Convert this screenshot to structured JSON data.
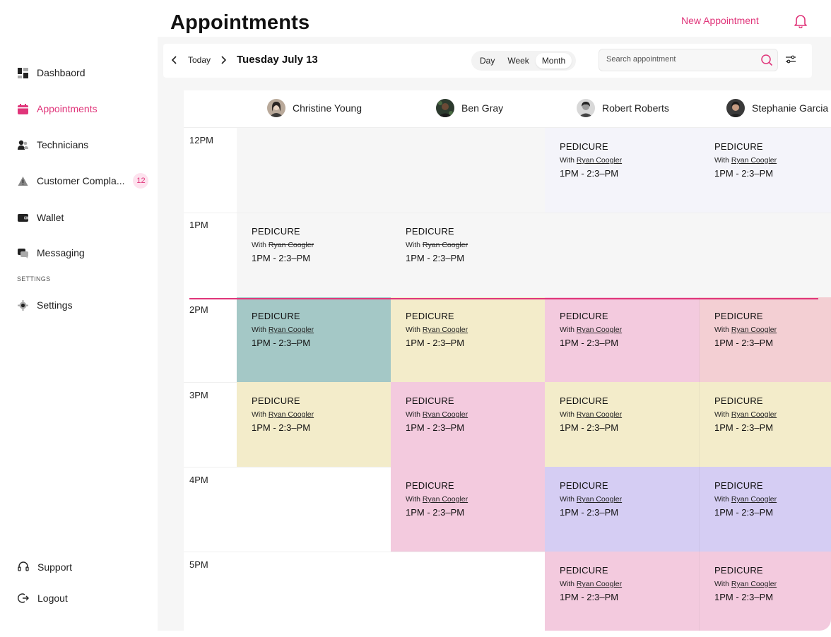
{
  "header": {
    "title": "Appointments",
    "new_appointment": "New Appointment"
  },
  "sidebar": {
    "items": [
      {
        "label": "Dashbaord",
        "icon": "dashboard-icon"
      },
      {
        "label": "Appointments",
        "icon": "calendar-icon",
        "active": true
      },
      {
        "label": "Technicians",
        "icon": "users-icon"
      },
      {
        "label": "Customer Compla...",
        "icon": "warning-icon",
        "badge": "12"
      },
      {
        "label": "Wallet",
        "icon": "wallet-icon"
      },
      {
        "label": "Messaging",
        "icon": "chat-icon"
      }
    ],
    "settings_section": "SETTINGS",
    "settings": {
      "label": "Settings",
      "icon": "gear-icon"
    },
    "support": {
      "label": "Support",
      "icon": "headset-icon"
    },
    "logout": {
      "label": "Logout",
      "icon": "logout-icon"
    }
  },
  "toolbar": {
    "today": "Today",
    "date": "Tuesday July 13",
    "views": [
      "Day",
      "Week",
      "Month"
    ],
    "active_view": "Month",
    "search_placeholder": "Search appointment"
  },
  "technicians": [
    "Christine Young",
    "Ben Gray",
    "Robert Roberts",
    "Stephanie Garcia"
  ],
  "times": [
    "12PM",
    "1PM",
    "2PM",
    "3PM",
    "4PM",
    "5PM"
  ],
  "appointment": {
    "service": "PEDICURE",
    "with_prefix": "With",
    "with_name": "Ryan Coogler",
    "time": "1PM - 2:3–PM"
  },
  "colors": {
    "accent": "#e0357a",
    "teal": "#a4c8c6",
    "yellow": "#f3ecca",
    "pink": "#f3cade",
    "salmon": "#f3cfd3",
    "lavender": "#d5cdf3",
    "pale_lavender": "#f4f4fa",
    "grey": "#f6f6f6"
  }
}
